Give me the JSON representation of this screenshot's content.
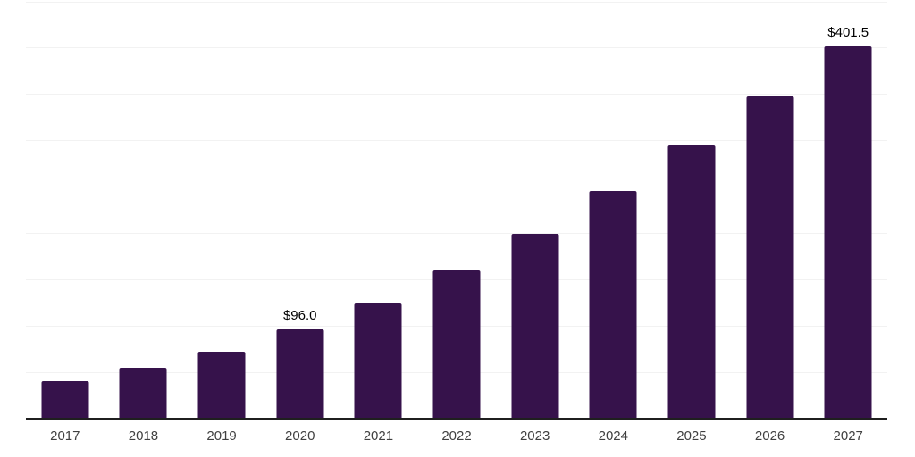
{
  "chart_data": {
    "type": "bar",
    "title": "",
    "xlabel": "",
    "ylabel": "",
    "categories": [
      "2017",
      "2018",
      "2019",
      "2020",
      "2021",
      "2022",
      "2023",
      "2024",
      "2025",
      "2026",
      "2027"
    ],
    "values": [
      40.3,
      54.7,
      72.0,
      96.0,
      124.8,
      160.3,
      199.7,
      245.8,
      294.8,
      347.7,
      401.5
    ],
    "point_labels": [
      "",
      "",
      "",
      "$96.0",
      "",
      "",
      "",
      "",
      "",
      "",
      "$401.5"
    ],
    "ylim": [
      0,
      450
    ],
    "grid": true,
    "grid_step": 50,
    "legend": false,
    "colors": {
      "bar": "#36124b",
      "gridline": "#f2f2f2",
      "axis_line": "#1f1f1f",
      "tick_label": "#404040",
      "value_label": "#000000",
      "background": "#ffffff"
    }
  }
}
